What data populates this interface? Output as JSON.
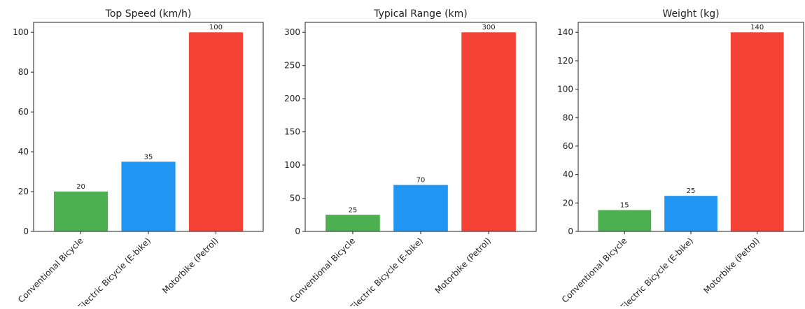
{
  "chart_data": [
    {
      "type": "bar",
      "title": "Top Speed (km/h)",
      "categories": [
        "Conventional Bicycle",
        "Electric Bicycle (E-bike)",
        "Motorbike (Petrol)"
      ],
      "values": [
        20,
        35,
        100
      ],
      "value_labels": [
        "20",
        "35",
        "100"
      ],
      "colors": [
        "#4caf50",
        "#2196f3",
        "#f44336"
      ],
      "ylim": [
        0,
        105
      ],
      "yticks": [
        0,
        20,
        40,
        60,
        80,
        100
      ],
      "ytick_labels": [
        "0",
        "20",
        "40",
        "60",
        "80",
        "100"
      ],
      "xlabel": "",
      "ylabel": "",
      "grid": false
    },
    {
      "type": "bar",
      "title": "Typical Range (km)",
      "categories": [
        "Conventional Bicycle",
        "Electric Bicycle (E-bike)",
        "Motorbike (Petrol)"
      ],
      "values": [
        25,
        70,
        300
      ],
      "value_labels": [
        "25",
        "70",
        "300"
      ],
      "colors": [
        "#4caf50",
        "#2196f3",
        "#f44336"
      ],
      "ylim": [
        0,
        315
      ],
      "yticks": [
        0,
        50,
        100,
        150,
        200,
        250,
        300
      ],
      "ytick_labels": [
        "0",
        "50",
        "100",
        "150",
        "200",
        "250",
        "300"
      ],
      "xlabel": "",
      "ylabel": "",
      "grid": false
    },
    {
      "type": "bar",
      "title": "Weight (kg)",
      "categories": [
        "Conventional Bicycle",
        "Electric Bicycle (E-bike)",
        "Motorbike (Petrol)"
      ],
      "values": [
        15,
        25,
        140
      ],
      "value_labels": [
        "15",
        "25",
        "140"
      ],
      "colors": [
        "#4caf50",
        "#2196f3",
        "#f44336"
      ],
      "ylim": [
        0,
        147
      ],
      "yticks": [
        0,
        20,
        40,
        60,
        80,
        100,
        120,
        140
      ],
      "ytick_labels": [
        "0",
        "20",
        "40",
        "60",
        "80",
        "100",
        "120",
        "140"
      ],
      "xlabel": "",
      "ylabel": "",
      "grid": false
    }
  ]
}
